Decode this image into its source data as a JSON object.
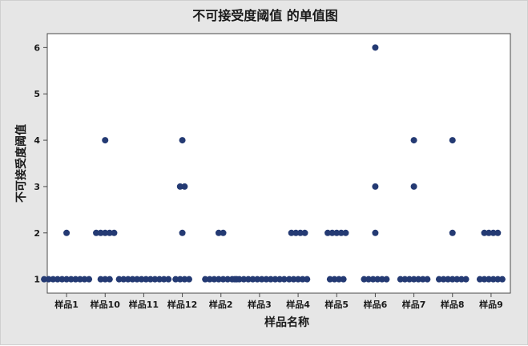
{
  "chart_data": {
    "type": "scatter",
    "title": "不可接受度阈值  的单值图",
    "xlabel": "样品名称",
    "ylabel": "不可接受度阈值",
    "categories": [
      "样品1",
      "样品10",
      "样品11",
      "样品12",
      "样品2",
      "样品3",
      "样品4",
      "样品5",
      "样品6",
      "样品7",
      "样品8",
      "样品9"
    ],
    "y_ticks": [
      1,
      2,
      3,
      4,
      5,
      6
    ],
    "ylim": [
      0.7,
      6.3
    ],
    "grid": false,
    "marker_color": "#243a73",
    "series": [
      {
        "category": "样品1",
        "values": [
          1,
          1,
          1,
          1,
          1,
          1,
          1,
          1,
          1,
          1,
          1,
          2
        ]
      },
      {
        "category": "样品10",
        "values": [
          1,
          1,
          1,
          2,
          2,
          2,
          2,
          2,
          4
        ]
      },
      {
        "category": "样品11",
        "values": [
          1,
          1,
          1,
          1,
          1,
          1,
          1,
          1,
          1,
          1,
          1,
          1
        ]
      },
      {
        "category": "样品12",
        "values": [
          1,
          1,
          1,
          1,
          2,
          3,
          3,
          4
        ]
      },
      {
        "category": "样品2",
        "values": [
          1,
          1,
          1,
          1,
          1,
          1,
          1,
          1,
          2,
          2
        ]
      },
      {
        "category": "样品3",
        "values": [
          1,
          1,
          1,
          1,
          1,
          1,
          1,
          1,
          1,
          1,
          1,
          1
        ]
      },
      {
        "category": "样品4",
        "values": [
          1,
          1,
          1,
          1,
          1,
          2,
          2,
          2,
          2
        ]
      },
      {
        "category": "样品5",
        "values": [
          1,
          1,
          1,
          1,
          2,
          2,
          2,
          2,
          2
        ]
      },
      {
        "category": "样品6",
        "values": [
          1,
          1,
          1,
          1,
          1,
          1,
          2,
          3,
          6
        ]
      },
      {
        "category": "样品7",
        "values": [
          1,
          1,
          1,
          1,
          1,
          1,
          1,
          3,
          4
        ]
      },
      {
        "category": "样品8",
        "values": [
          1,
          1,
          1,
          1,
          1,
          1,
          1,
          2,
          4
        ]
      },
      {
        "category": "样品9",
        "values": [
          1,
          1,
          1,
          1,
          1,
          1,
          2,
          2,
          2,
          2
        ]
      }
    ]
  }
}
